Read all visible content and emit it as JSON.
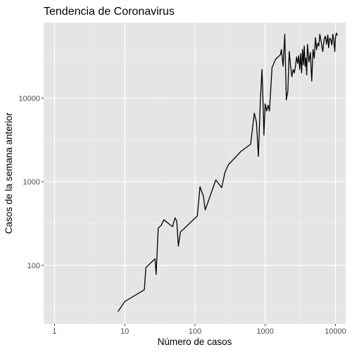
{
  "chart_data": {
    "type": "line",
    "title": "Tendencia de Coronavirus",
    "xlabel": "Número de casos",
    "ylabel": "Casos de la semana anterior",
    "x_scale": "log10",
    "y_scale": "log10",
    "xlim": [
      0.7,
      14000
    ],
    "ylim": [
      20,
      80000
    ],
    "x_ticks": [
      1,
      10,
      100,
      1000,
      10000
    ],
    "x_tick_labels": [
      "1",
      "10",
      "100",
      "1000",
      "10000"
    ],
    "y_ticks": [
      100,
      1000,
      10000
    ],
    "y_tick_labels": [
      "100",
      "1000",
      "10000"
    ],
    "grid": true,
    "line_color": "#000000",
    "panel_color": "#e5e5e5",
    "series": [
      {
        "x": [
          8,
          10,
          19,
          20,
          27,
          28,
          30,
          33,
          36,
          48,
          52,
          55,
          58,
          62,
          108,
          118,
          132,
          140,
          198,
          240,
          268,
          300,
          450,
          620,
          700,
          750,
          800,
          850,
          900,
          930,
          960,
          1000,
          1050,
          1100,
          1150,
          1250,
          1400,
          1650,
          1700,
          1800,
          1900,
          2000,
          2100,
          2200,
          2300,
          2400,
          2500,
          2600,
          2700,
          2800,
          2900,
          3000,
          3100,
          3200,
          3300,
          3400,
          3500,
          3600,
          3700,
          3800,
          3900,
          4000,
          4200,
          4400,
          4600,
          4800,
          5000,
          5200,
          5400,
          5600,
          5800,
          6000,
          6300,
          6600,
          6900,
          7200,
          7500,
          7800,
          8000,
          8300,
          8600,
          8900,
          9200,
          9500,
          9800,
          10000,
          10300,
          10700
        ],
        "y": [
          28,
          37,
          51,
          94,
          120,
          78,
          280,
          300,
          350,
          290,
          370,
          340,
          170,
          250,
          390,
          870,
          670,
          460,
          1050,
          850,
          1300,
          1600,
          2300,
          2800,
          6600,
          5200,
          2000,
          8500,
          22000,
          9500,
          3600,
          8500,
          7000,
          8200,
          7000,
          23000,
          29000,
          33000,
          38000,
          24000,
          58000,
          9500,
          12000,
          36000,
          24000,
          18000,
          22000,
          20000,
          24000,
          31000,
          26000,
          32000,
          22000,
          34000,
          20000,
          38000,
          25000,
          42000,
          24000,
          30000,
          19000,
          44000,
          27000,
          35000,
          16000,
          38000,
          30000,
          53000,
          38000,
          45000,
          42000,
          58000,
          46000,
          36000,
          50000,
          55000,
          44000,
          57000,
          40000,
          52000,
          50000,
          43000,
          58000,
          48000,
          36000,
          52000,
          60000,
          56000
        ]
      }
    ]
  }
}
